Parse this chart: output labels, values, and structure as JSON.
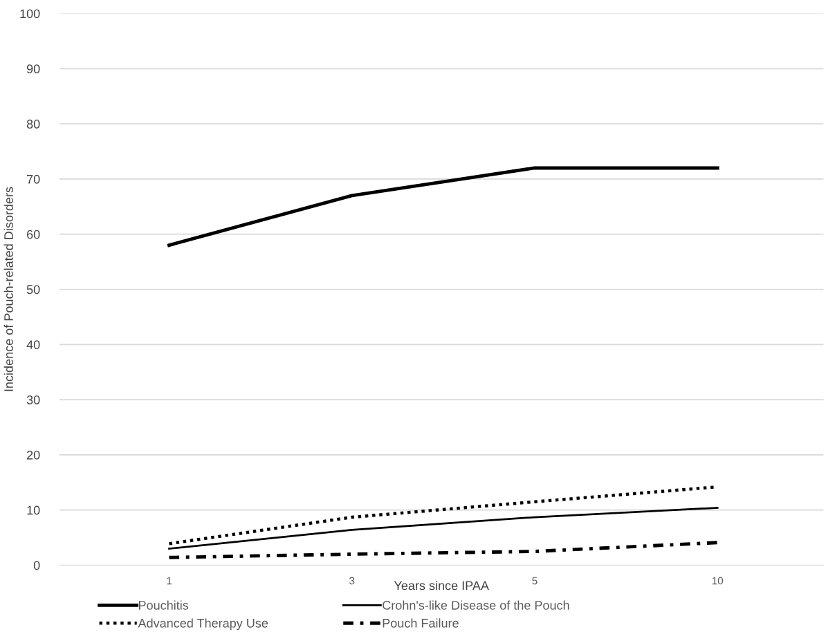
{
  "chart_data": {
    "type": "line",
    "xlabel": "Years since IPAA",
    "ylabel": "Incidence of Pouch-related Disorders",
    "categories": [
      "1",
      "3",
      "5",
      "10"
    ],
    "ylim": [
      0,
      100
    ],
    "yticks": [
      0,
      10,
      20,
      30,
      40,
      50,
      60,
      70,
      80,
      90,
      100
    ],
    "grid": "y",
    "legend": "bottom",
    "marker": "none",
    "series": [
      {
        "name": "Pouchitis",
        "color": "#000000",
        "line_style": "solid",
        "values": [
          58,
          67,
          72,
          72
        ]
      },
      {
        "name": "Crohn's-like Disease of the Pouch",
        "color": "#000000",
        "line_style": "solid",
        "values": [
          3.0,
          6.4,
          8.7,
          10.4
        ]
      },
      {
        "name": "Advanced Therapy Use",
        "color": "#000000",
        "line_style": "dotted",
        "values": [
          3.9,
          8.7,
          11.5,
          14.2
        ]
      },
      {
        "name": "Pouch Failure",
        "color": "#000000",
        "line_style": "dashdot",
        "values": [
          1.4,
          2.0,
          2.5,
          4.1
        ]
      }
    ]
  }
}
